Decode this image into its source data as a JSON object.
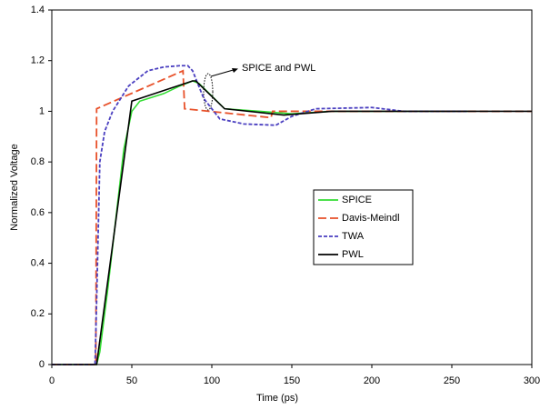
{
  "chart_data": {
    "type": "line",
    "xlabel": "Time (ps)",
    "ylabel": "Normalized Voltage",
    "xlim": [
      0,
      300
    ],
    "xticks": [
      0,
      50,
      100,
      150,
      200,
      250,
      300
    ],
    "ylim": [
      0,
      1.4
    ],
    "yticks": [
      0,
      0.2,
      0.4,
      0.6,
      0.8,
      1,
      1.2,
      1.4
    ],
    "annotation": "SPICE and PWL",
    "series": [
      {
        "name": "SPICE",
        "color": "#33dd33",
        "dash": false,
        "x": [
          0,
          28,
          30,
          35,
          45,
          50,
          55,
          60,
          70,
          80,
          88,
          92,
          100,
          108,
          130,
          150,
          175,
          200,
          260
        ],
        "values": [
          0,
          0,
          0.05,
          0.3,
          0.85,
          1.0,
          1.04,
          1.05,
          1.07,
          1.1,
          1.12,
          1.11,
          1.06,
          1.01,
          1.0,
          0.99,
          1.0,
          1.0,
          1.0
        ]
      },
      {
        "name": "Davis-Meindl",
        "color": "#e8512a",
        "dash": true,
        "x": [
          0,
          27.5,
          28,
          82,
          83,
          137,
          138,
          300
        ],
        "values": [
          0,
          0,
          1.01,
          1.16,
          1.01,
          0.975,
          1.0,
          1.0
        ]
      },
      {
        "name": "TWA",
        "color": "#4a3fc0",
        "dash": true,
        "x": [
          0,
          27,
          28,
          30,
          33,
          38,
          48,
          60,
          70,
          80,
          85,
          88,
          95,
          105,
          120,
          140,
          150,
          165,
          200,
          220,
          260
        ],
        "values": [
          0,
          0,
          0.25,
          0.8,
          0.92,
          1.0,
          1.1,
          1.16,
          1.175,
          1.18,
          1.18,
          1.16,
          1.05,
          0.97,
          0.95,
          0.945,
          0.98,
          1.01,
          1.015,
          1.0,
          1.0
        ]
      },
      {
        "name": "PWL",
        "color": "#000000",
        "dash": false,
        "x": [
          0,
          28,
          50,
          88,
          90,
          108,
          145,
          175,
          300
        ],
        "values": [
          0,
          0,
          1.04,
          1.12,
          1.12,
          1.01,
          0.985,
          1.0,
          1.0
        ]
      }
    ]
  }
}
